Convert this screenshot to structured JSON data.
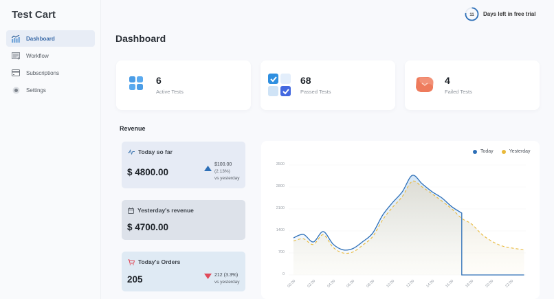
{
  "sidebar": {
    "brand": "Test Cart",
    "items": [
      {
        "label": "Dashboard",
        "icon": "chart-icon",
        "active": true
      },
      {
        "label": "Workflow",
        "icon": "workflow-icon",
        "active": false
      },
      {
        "label": "Subscriptions",
        "icon": "credit-card-icon",
        "active": false
      },
      {
        "label": "Settings",
        "icon": "gear-icon",
        "active": false
      }
    ]
  },
  "trial": {
    "days": "11",
    "label": "Days left in free trial",
    "ring_color": "#2d6fb7"
  },
  "page": {
    "title": "Dashboard"
  },
  "stats": [
    {
      "value": "6",
      "label": "Active Tests",
      "icon": "grid-icon"
    },
    {
      "value": "68",
      "label": "Passed Tests",
      "icon": "checkbox-icon"
    },
    {
      "value": "4",
      "label": "Failed Tests",
      "icon": "failed-box-icon"
    }
  ],
  "revenue": {
    "title": "Revenue",
    "today": {
      "label": "Today so far",
      "value": "$ 4800.00",
      "delta_amount": "$100.00",
      "delta_pct": "(2.13%)",
      "delta_note": "vs yesterday",
      "trend": "up"
    },
    "yesterday": {
      "label": "Yesterday's revenue",
      "value": "$ 4700.00"
    },
    "orders": {
      "label": "Today's Orders",
      "value": "205",
      "delta": "212 (3.3%)",
      "delta_note": "vs yesterday",
      "trend": "down"
    }
  },
  "colors": {
    "today": "#2d6fb7",
    "yesterday": "#e9b93a",
    "up": "#2d6fb7",
    "down": "#e04a5a"
  },
  "chart_data": {
    "type": "line",
    "title": "",
    "xlabel": "",
    "ylabel": "",
    "ylim": [
      0,
      3500
    ],
    "yticks": [
      "3500",
      "2800",
      "2100",
      "1400",
      "700",
      "0"
    ],
    "categories": [
      "00:00",
      "02:00",
      "04:00",
      "06:00",
      "08:00",
      "10:00",
      "12:00",
      "14:00",
      "16:00",
      "18:00",
      "20:00",
      "22:00"
    ],
    "legend": [
      "Today",
      "Yesterday"
    ],
    "legend_position": "top-right",
    "grid": true,
    "series": [
      {
        "name": "Today",
        "x_hours": [
          0,
          1,
          2,
          3,
          4,
          5,
          6,
          7,
          8,
          9,
          10,
          11,
          12,
          13,
          14,
          15,
          16,
          17,
          17
        ],
        "values": [
          1180,
          1290,
          1050,
          1380,
          980,
          800,
          840,
          1060,
          1330,
          1900,
          2300,
          2650,
          3170,
          2900,
          2650,
          2450,
          2170,
          1970,
          0
        ]
      },
      {
        "name": "Yesterday",
        "x_hours": [
          0,
          1,
          2,
          3,
          4,
          5,
          6,
          7,
          8,
          9,
          10,
          11,
          12,
          13,
          14,
          15,
          16,
          17,
          18,
          19,
          20,
          21,
          22,
          23.3
        ],
        "values": [
          1080,
          1150,
          970,
          1280,
          880,
          700,
          730,
          950,
          1220,
          1750,
          2150,
          2500,
          2980,
          2800,
          2580,
          2350,
          2100,
          1800,
          1620,
          1300,
          1080,
          930,
          860,
          800
        ]
      }
    ]
  }
}
